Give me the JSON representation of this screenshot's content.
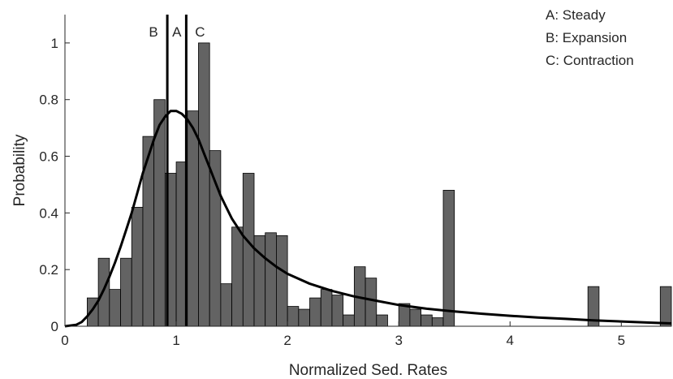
{
  "chart_data": {
    "type": "bar",
    "title": "",
    "xlabel": "Normalized Sed. Rates",
    "ylabel": "Probability",
    "xlim": [
      0,
      5.45
    ],
    "ylim": [
      0,
      1.1
    ],
    "grid": false,
    "xticks": [
      0,
      1,
      2,
      3,
      4,
      5
    ],
    "xtick_labels": [
      "0",
      "1",
      "2",
      "3",
      "4",
      "5"
    ],
    "yticks": [
      0,
      0.2,
      0.4,
      0.6,
      0.8,
      1
    ],
    "ytick_labels": [
      "0",
      "0.2",
      "0.4",
      "0.6",
      "0.8",
      "1"
    ],
    "histogram": {
      "name": "",
      "bin_width": 0.1,
      "color": "#636363",
      "bins": [
        {
          "x0": 0.2,
          "value": 0.1
        },
        {
          "x0": 0.3,
          "value": 0.24
        },
        {
          "x0": 0.4,
          "value": 0.13
        },
        {
          "x0": 0.5,
          "value": 0.24
        },
        {
          "x0": 0.6,
          "value": 0.42
        },
        {
          "x0": 0.7,
          "value": 0.67
        },
        {
          "x0": 0.8,
          "value": 0.8
        },
        {
          "x0": 0.9,
          "value": 0.54
        },
        {
          "x0": 1.0,
          "value": 0.58
        },
        {
          "x0": 1.1,
          "value": 0.76
        },
        {
          "x0": 1.2,
          "value": 1.0
        },
        {
          "x0": 1.3,
          "value": 0.62
        },
        {
          "x0": 1.4,
          "value": 0.15
        },
        {
          "x0": 1.5,
          "value": 0.35
        },
        {
          "x0": 1.6,
          "value": 0.54
        },
        {
          "x0": 1.7,
          "value": 0.32
        },
        {
          "x0": 1.8,
          "value": 0.33
        },
        {
          "x0": 1.9,
          "value": 0.32
        },
        {
          "x0": 2.0,
          "value": 0.07
        },
        {
          "x0": 2.1,
          "value": 0.06
        },
        {
          "x0": 2.2,
          "value": 0.1
        },
        {
          "x0": 2.3,
          "value": 0.13
        },
        {
          "x0": 2.4,
          "value": 0.11
        },
        {
          "x0": 2.5,
          "value": 0.04
        },
        {
          "x0": 2.6,
          "value": 0.21
        },
        {
          "x0": 2.7,
          "value": 0.17
        },
        {
          "x0": 2.8,
          "value": 0.04
        },
        {
          "x0": 3.0,
          "value": 0.08
        },
        {
          "x0": 3.1,
          "value": 0.06
        },
        {
          "x0": 3.2,
          "value": 0.04
        },
        {
          "x0": 3.3,
          "value": 0.03
        },
        {
          "x0": 3.4,
          "value": 0.48
        },
        {
          "x0": 4.7,
          "value": 0.14
        },
        {
          "x0": 5.35,
          "value": 0.14
        }
      ]
    },
    "fit_curve": {
      "name": "",
      "type": "line",
      "color": "#000000",
      "x": [
        0,
        0.1,
        0.15,
        0.2,
        0.25,
        0.3,
        0.35,
        0.4,
        0.45,
        0.5,
        0.55,
        0.6,
        0.65,
        0.7,
        0.75,
        0.8,
        0.85,
        0.9,
        0.95,
        1.0,
        1.05,
        1.1,
        1.15,
        1.2,
        1.25,
        1.3,
        1.35,
        1.4,
        1.45,
        1.5,
        1.6,
        1.7,
        1.8,
        1.9,
        2.0,
        2.2,
        2.4,
        2.6,
        2.8,
        3.0,
        3.25,
        3.5,
        3.75,
        4.0,
        4.25,
        4.5,
        4.75,
        5.0,
        5.25,
        5.45
      ],
      "y": [
        0,
        0.005,
        0.015,
        0.035,
        0.06,
        0.09,
        0.13,
        0.175,
        0.225,
        0.28,
        0.34,
        0.4,
        0.47,
        0.54,
        0.6,
        0.66,
        0.71,
        0.74,
        0.76,
        0.76,
        0.75,
        0.73,
        0.7,
        0.66,
        0.61,
        0.56,
        0.51,
        0.46,
        0.42,
        0.38,
        0.32,
        0.275,
        0.24,
        0.21,
        0.185,
        0.15,
        0.125,
        0.105,
        0.09,
        0.075,
        0.062,
        0.052,
        0.044,
        0.037,
        0.031,
        0.026,
        0.021,
        0.017,
        0.013,
        0.01
      ]
    },
    "markers": [
      {
        "label": "B",
        "x": 0.92
      },
      {
        "label": "A",
        "x": 0.98
      },
      {
        "label": "C",
        "x": 1.09
      }
    ],
    "marker_lines": [
      0.92,
      1.09
    ],
    "legend": {
      "placement": "top-right",
      "entries": [
        "A: Steady",
        "B: Expansion",
        "C: Contraction"
      ]
    }
  }
}
